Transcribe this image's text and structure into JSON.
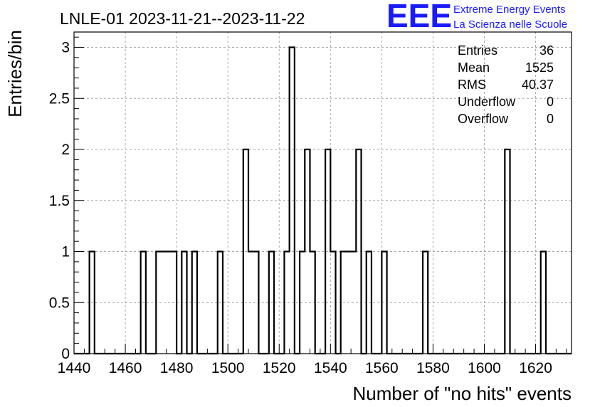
{
  "chart_data": {
    "type": "bar",
    "title": "LNLE-01 2023-11-21--2023-11-22",
    "xlabel": "Number of \"no hits\" events",
    "ylabel": "Entries/bin",
    "bin_width": 2,
    "xlim": [
      1440,
      1634
    ],
    "ylim": [
      0,
      3.15
    ],
    "grid": true,
    "x_ticks": [
      "1440",
      "1460",
      "1480",
      "1500",
      "1520",
      "1540",
      "1560",
      "1580",
      "1600",
      "1620"
    ],
    "y_ticks": [
      "0",
      "0.5",
      "1",
      "1.5",
      "2",
      "2.5",
      "3"
    ],
    "bins": [
      {
        "x": 1446,
        "count": 1
      },
      {
        "x": 1466,
        "count": 1
      },
      {
        "x": 1472,
        "count": 1
      },
      {
        "x": 1474,
        "count": 1
      },
      {
        "x": 1476,
        "count": 1
      },
      {
        "x": 1478,
        "count": 1
      },
      {
        "x": 1482,
        "count": 1
      },
      {
        "x": 1486,
        "count": 1
      },
      {
        "x": 1496,
        "count": 1
      },
      {
        "x": 1506,
        "count": 2
      },
      {
        "x": 1508,
        "count": 1
      },
      {
        "x": 1510,
        "count": 1
      },
      {
        "x": 1516,
        "count": 1
      },
      {
        "x": 1522,
        "count": 1
      },
      {
        "x": 1524,
        "count": 3
      },
      {
        "x": 1528,
        "count": 1
      },
      {
        "x": 1530,
        "count": 2
      },
      {
        "x": 1532,
        "count": 1
      },
      {
        "x": 1538,
        "count": 2
      },
      {
        "x": 1540,
        "count": 1
      },
      {
        "x": 1544,
        "count": 1
      },
      {
        "x": 1546,
        "count": 1
      },
      {
        "x": 1548,
        "count": 1
      },
      {
        "x": 1550,
        "count": 2
      },
      {
        "x": 1554,
        "count": 1
      },
      {
        "x": 1560,
        "count": 1
      },
      {
        "x": 1576,
        "count": 1
      },
      {
        "x": 1608,
        "count": 2
      },
      {
        "x": 1622,
        "count": 1
      }
    ],
    "stats": [
      {
        "label": "Entries",
        "value": "36"
      },
      {
        "label": "Mean",
        "value": "1525"
      },
      {
        "label": "RMS",
        "value": "40.37"
      },
      {
        "label": "Underflow",
        "value": "0"
      },
      {
        "label": "Overflow",
        "value": "0"
      }
    ]
  },
  "logo": {
    "mark": "EEE",
    "line1": "Extreme Energy Events",
    "line2": "La Scienza nelle Scuole",
    "color": "#1a1aff"
  }
}
